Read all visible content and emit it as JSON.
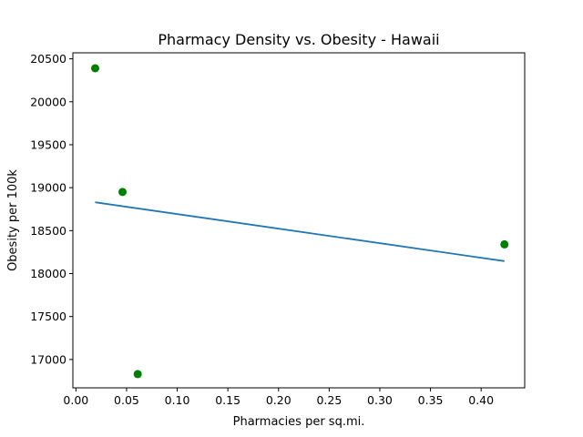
{
  "chart_data": {
    "type": "scatter",
    "title": "Pharmacy Density vs. Obesity - Hawaii",
    "xlabel": "Pharmacies per sq.mi.",
    "ylabel": "Obesity per 100k",
    "xlim": [
      -0.003,
      0.443
    ],
    "ylim": [
      16670,
      20570
    ],
    "x_ticks": [
      0.0,
      0.05,
      0.1,
      0.15,
      0.2,
      0.25,
      0.3,
      0.35,
      0.4
    ],
    "x_tick_labels": [
      "0.00",
      "0.05",
      "0.10",
      "0.15",
      "0.20",
      "0.25",
      "0.30",
      "0.35",
      "0.40"
    ],
    "y_ticks": [
      17000,
      17500,
      18000,
      18500,
      19000,
      19500,
      20000,
      20500
    ],
    "y_tick_labels": [
      "17000",
      "17500",
      "18000",
      "18500",
      "19000",
      "19500",
      "20000",
      "20500"
    ],
    "grid": false,
    "series": [
      {
        "kind": "scatter",
        "color": "#008000",
        "points": [
          {
            "x": 0.019,
            "y": 20390
          },
          {
            "x": 0.046,
            "y": 18950
          },
          {
            "x": 0.061,
            "y": 16830
          },
          {
            "x": 0.423,
            "y": 18340
          }
        ]
      },
      {
        "kind": "line",
        "color": "#1f77b4",
        "points": [
          {
            "x": 0.019,
            "y": 18830
          },
          {
            "x": 0.423,
            "y": 18145
          }
        ]
      }
    ]
  }
}
